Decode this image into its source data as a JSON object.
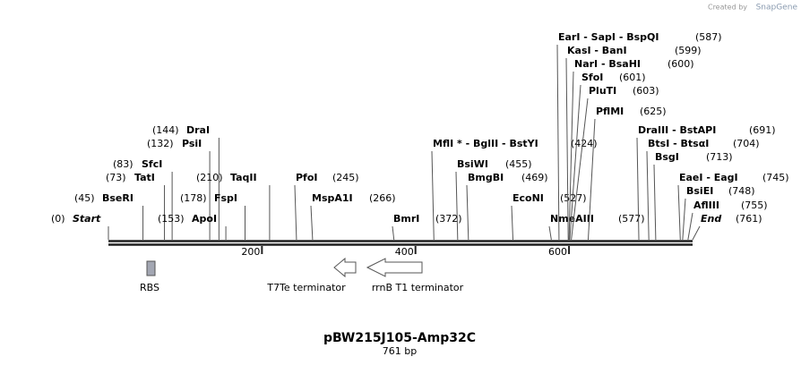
{
  "header": {
    "credit": "Created by",
    "brand": "SnapGene"
  },
  "map": {
    "name": "pBW215J105-Amp32C",
    "length": {
      "value": 761,
      "label": "761 bp"
    },
    "ruler": [
      200,
      400,
      600
    ],
    "features": [
      {
        "label": "RBS"
      },
      {
        "label": "T7Te terminator"
      },
      {
        "label": "rrnB T1 terminator"
      }
    ],
    "sites": [
      {
        "name": "Start",
        "position": {
          "value": 0,
          "label": "(0)"
        },
        "italic": true
      },
      {
        "name": "BseRI",
        "position": {
          "value": 45,
          "label": "(45)"
        }
      },
      {
        "name": "TatI",
        "position": {
          "value": 73,
          "label": "(73)"
        }
      },
      {
        "name": "SfcI",
        "position": {
          "value": 83,
          "label": "(83)"
        }
      },
      {
        "name": "PsiI",
        "position": {
          "value": 132,
          "label": "(132)"
        }
      },
      {
        "name": "DraI",
        "position": {
          "value": 144,
          "label": "(144)"
        }
      },
      {
        "name": "ApoI",
        "position": {
          "value": 153,
          "label": "(153)"
        }
      },
      {
        "name": "FspI",
        "position": {
          "value": 178,
          "label": "(178)"
        }
      },
      {
        "name": "TaqII",
        "position": {
          "value": 210,
          "label": "(210)"
        }
      },
      {
        "name": "PfoI",
        "position": {
          "value": 245,
          "label": "(245)"
        }
      },
      {
        "name": "MspA1I",
        "position": {
          "value": 266,
          "label": "(266)"
        }
      },
      {
        "name": "BmrI",
        "position": {
          "value": 372,
          "label": "(372)"
        }
      },
      {
        "name": "MflI * - BglII  - BstYI",
        "position": {
          "value": 424,
          "label": "(424)"
        }
      },
      {
        "name": "BsiWI",
        "position": {
          "value": 455,
          "label": "(455)"
        }
      },
      {
        "name": "BmgBI",
        "position": {
          "value": 469,
          "label": "(469)"
        }
      },
      {
        "name": "EcoNI",
        "position": {
          "value": 527,
          "label": "(527)"
        }
      },
      {
        "name": "NmeAIII",
        "position": {
          "value": 577,
          "label": "(577)"
        }
      },
      {
        "name": "EarI  - SapI  - BspQI",
        "position": {
          "value": 587,
          "label": "(587)"
        }
      },
      {
        "name": "KasI  - BanI",
        "position": {
          "value": 599,
          "label": "(599)"
        }
      },
      {
        "name": "NarI  - BsaHI",
        "position": {
          "value": 600,
          "label": "(600)"
        }
      },
      {
        "name": "SfoI",
        "position": {
          "value": 601,
          "label": "(601)"
        }
      },
      {
        "name": "PluTI",
        "position": {
          "value": 603,
          "label": "(603)"
        }
      },
      {
        "name": "PflMI",
        "position": {
          "value": 625,
          "label": "(625)"
        }
      },
      {
        "name": "DraIII  - BstAPI",
        "position": {
          "value": 691,
          "label": "(691)"
        }
      },
      {
        "name": "BtsI - BtsαI",
        "position": {
          "value": 704,
          "label": "(704)"
        }
      },
      {
        "name": "BsgI",
        "position": {
          "value": 713,
          "label": "(713)"
        }
      },
      {
        "name": "EaeI  - EagI",
        "position": {
          "value": 745,
          "label": "(745)"
        }
      },
      {
        "name": "BsiEI",
        "position": {
          "value": 748,
          "label": "(748)"
        }
      },
      {
        "name": "AflIII",
        "position": {
          "value": 755,
          "label": "(755)"
        }
      },
      {
        "name": "End",
        "position": {
          "value": 761,
          "label": "(761)"
        },
        "italic": true
      }
    ]
  }
}
